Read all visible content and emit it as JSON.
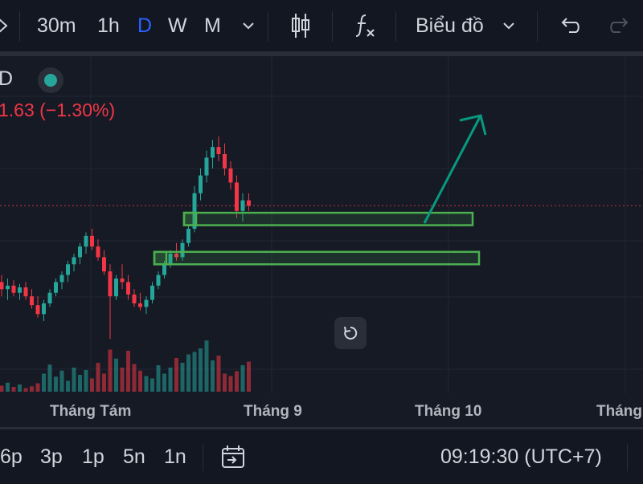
{
  "toolbar": {
    "intervals": [
      "30m",
      "1h",
      "D",
      "W",
      "M"
    ],
    "active_interval": "D",
    "chart_type_label": "Biểu đồ"
  },
  "legend": {
    "symbol_fragment": "D",
    "change_text": "1.63 (−1.30%)",
    "status_color": "#26a69a",
    "down_color": "#f23645",
    "up_color": "#26a69a"
  },
  "drawings": {
    "zone_color": "#4caf50",
    "arrow_color": "#089981"
  },
  "time_axis": {
    "labels": [
      "Tháng Tám",
      "Tháng 9",
      "Tháng 10",
      "Tháng"
    ]
  },
  "bottom": {
    "ranges": [
      "6p",
      "3p",
      "1p",
      "5n",
      "1n"
    ],
    "clock": "09:19:30 (UTC+7)"
  },
  "chart_data": {
    "type": "candlestick",
    "candles": [
      {
        "o": 0.7,
        "h": 0.74,
        "l": 0.62,
        "c": 0.66
      },
      {
        "o": 0.66,
        "h": 0.72,
        "l": 0.6,
        "c": 0.68
      },
      {
        "o": 0.68,
        "h": 0.71,
        "l": 0.62,
        "c": 0.64
      },
      {
        "o": 0.64,
        "h": 0.69,
        "l": 0.6,
        "c": 0.67
      },
      {
        "o": 0.67,
        "h": 0.7,
        "l": 0.6,
        "c": 0.62
      },
      {
        "o": 0.62,
        "h": 0.66,
        "l": 0.55,
        "c": 0.57
      },
      {
        "o": 0.57,
        "h": 0.62,
        "l": 0.5,
        "c": 0.52
      },
      {
        "o": 0.52,
        "h": 0.6,
        "l": 0.48,
        "c": 0.58
      },
      {
        "o": 0.58,
        "h": 0.66,
        "l": 0.56,
        "c": 0.64
      },
      {
        "o": 0.64,
        "h": 0.72,
        "l": 0.62,
        "c": 0.7
      },
      {
        "o": 0.7,
        "h": 0.76,
        "l": 0.66,
        "c": 0.74
      },
      {
        "o": 0.74,
        "h": 0.82,
        "l": 0.7,
        "c": 0.8
      },
      {
        "o": 0.8,
        "h": 0.86,
        "l": 0.76,
        "c": 0.84
      },
      {
        "o": 0.84,
        "h": 0.92,
        "l": 0.8,
        "c": 0.9
      },
      {
        "o": 0.9,
        "h": 0.98,
        "l": 0.86,
        "c": 0.96
      },
      {
        "o": 0.96,
        "h": 1.0,
        "l": 0.88,
        "c": 0.9
      },
      {
        "o": 0.9,
        "h": 0.94,
        "l": 0.82,
        "c": 0.84
      },
      {
        "o": 0.84,
        "h": 0.88,
        "l": 0.74,
        "c": 0.76
      },
      {
        "o": 0.76,
        "h": 0.8,
        "l": 0.38,
        "c": 0.62
      },
      {
        "o": 0.62,
        "h": 0.74,
        "l": 0.6,
        "c": 0.72
      },
      {
        "o": 0.72,
        "h": 0.8,
        "l": 0.66,
        "c": 0.7
      },
      {
        "o": 0.7,
        "h": 0.74,
        "l": 0.6,
        "c": 0.63
      },
      {
        "o": 0.63,
        "h": 0.66,
        "l": 0.56,
        "c": 0.58
      },
      {
        "o": 0.58,
        "h": 0.64,
        "l": 0.54,
        "c": 0.56
      },
      {
        "o": 0.56,
        "h": 0.62,
        "l": 0.52,
        "c": 0.6
      },
      {
        "o": 0.6,
        "h": 0.7,
        "l": 0.58,
        "c": 0.68
      },
      {
        "o": 0.68,
        "h": 0.76,
        "l": 0.66,
        "c": 0.74
      },
      {
        "o": 0.74,
        "h": 0.82,
        "l": 0.72,
        "c": 0.8
      },
      {
        "o": 0.8,
        "h": 0.88,
        "l": 0.78,
        "c": 0.86
      },
      {
        "o": 0.86,
        "h": 0.92,
        "l": 0.82,
        "c": 0.84
      },
      {
        "o": 0.84,
        "h": 0.94,
        "l": 0.82,
        "c": 0.92
      },
      {
        "o": 0.92,
        "h": 1.02,
        "l": 0.9,
        "c": 1.0
      },
      {
        "o": 1.0,
        "h": 1.24,
        "l": 0.98,
        "c": 1.2
      },
      {
        "o": 1.2,
        "h": 1.34,
        "l": 1.16,
        "c": 1.3
      },
      {
        "o": 1.3,
        "h": 1.44,
        "l": 1.26,
        "c": 1.4
      },
      {
        "o": 1.4,
        "h": 1.5,
        "l": 1.34,
        "c": 1.46
      },
      {
        "o": 1.46,
        "h": 1.52,
        "l": 1.38,
        "c": 1.42
      },
      {
        "o": 1.42,
        "h": 1.48,
        "l": 1.3,
        "c": 1.34
      },
      {
        "o": 1.34,
        "h": 1.38,
        "l": 1.22,
        "c": 1.26
      },
      {
        "o": 1.26,
        "h": 1.3,
        "l": 1.06,
        "c": 1.1
      },
      {
        "o": 1.1,
        "h": 1.2,
        "l": 1.04,
        "c": 1.16
      },
      {
        "o": 1.16,
        "h": 1.2,
        "l": 1.1,
        "c": 1.13
      }
    ],
    "volume": [
      0.1,
      0.15,
      0.08,
      0.12,
      0.06,
      0.09,
      0.14,
      0.3,
      0.45,
      0.25,
      0.35,
      0.18,
      0.4,
      0.28,
      0.36,
      0.22,
      0.48,
      0.3,
      0.7,
      0.55,
      0.4,
      0.68,
      0.46,
      0.35,
      0.26,
      0.22,
      0.44,
      0.3,
      0.4,
      0.56,
      0.48,
      0.62,
      0.66,
      0.72,
      0.85,
      0.52,
      0.6,
      0.3,
      0.26,
      0.34,
      0.44,
      0.5
    ],
    "price_range": [
      0.3,
      1.7
    ],
    "zones": [
      {
        "from": 1.02,
        "to": 1.09
      },
      {
        "from": 0.8,
        "to": 0.87
      }
    ]
  }
}
